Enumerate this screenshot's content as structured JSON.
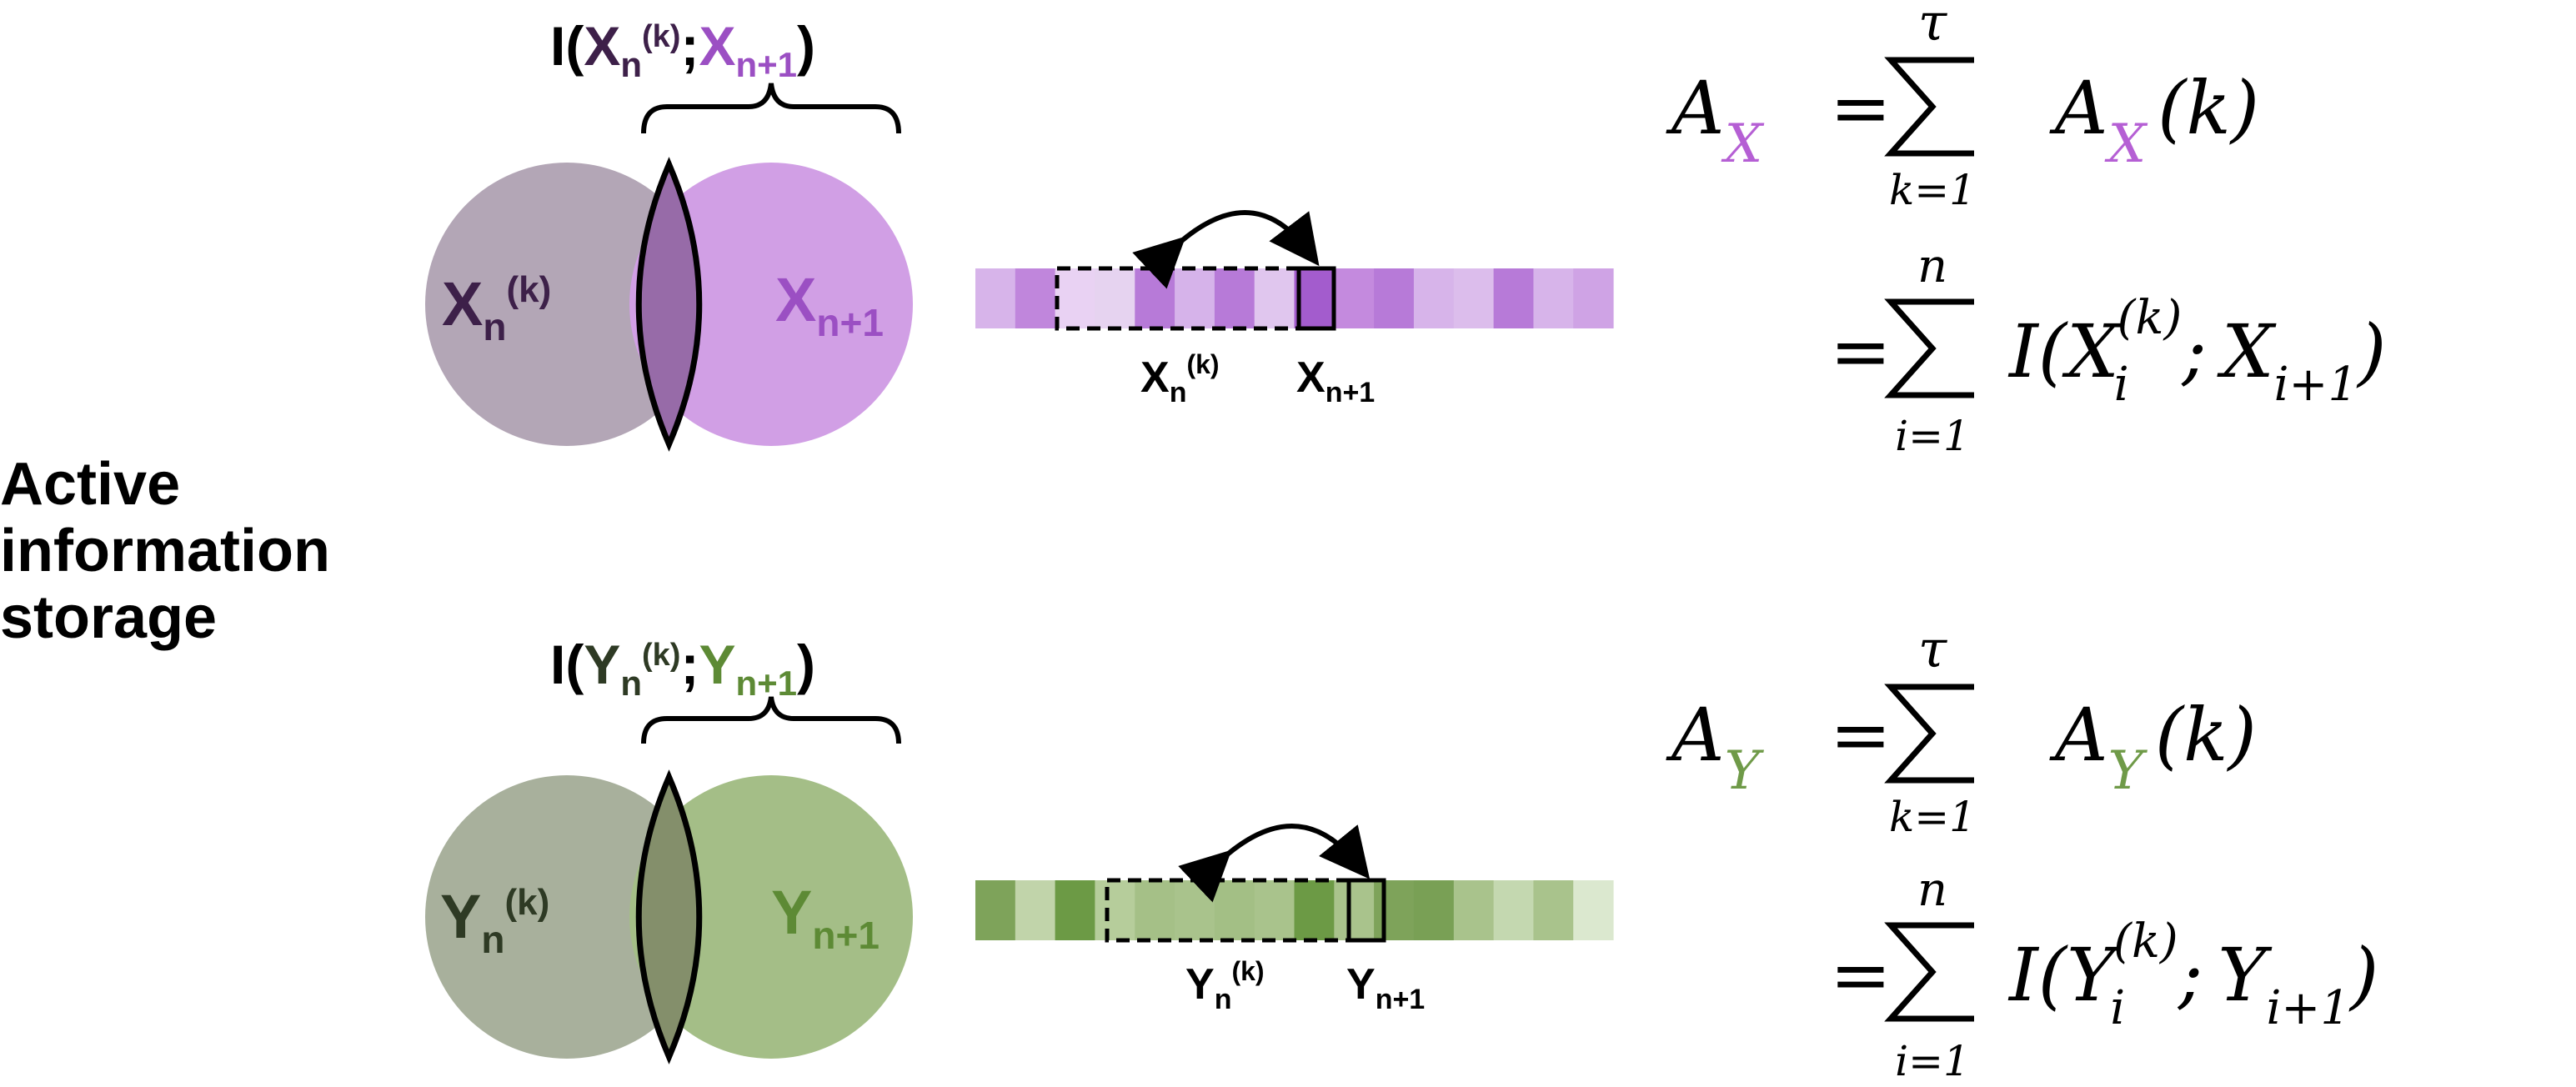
{
  "side_label": {
    "line1": "Active",
    "line2": "information",
    "line3": "storage"
  },
  "panels": [
    {
      "id": "X",
      "var": "X",
      "colors": {
        "past_circle": "#b3a6b6",
        "future_circle": "#d19fe5",
        "overlap": "#976ba8",
        "past_text": "#3d2049",
        "future_text": "#9b4fc3",
        "accent": "#b55fd4"
      },
      "mi_label": {
        "prefix": "I(",
        "var": "X",
        "sub": "n",
        "sup": "(k)",
        "sep": ";",
        "var2": "X",
        "sub2": "n+1",
        "suffix": ")"
      },
      "past_label": {
        "var": "X",
        "sub": "n",
        "sup": "(k)"
      },
      "future_label": {
        "var": "X",
        "sub": "n+1"
      },
      "strip_past_label": {
        "var": "X",
        "sub": "n",
        "sup": "(k)"
      },
      "strip_future_label": {
        "var": "X",
        "sub": "n+1"
      },
      "strip_cells": [
        "#d7b4ea",
        "#c086dc",
        "#e9d2f3",
        "#e6d3f0",
        "#b77ad8",
        "#d6b3ea",
        "#b77ad8",
        "#e0c6ee",
        "#a35ccd",
        "#c48ade",
        "#b77ad8",
        "#d7b4ea",
        "#dcbdec",
        "#b77ad8",
        "#d7b4ea",
        "#cfa3e5"
      ],
      "eq1": {
        "lhs": "A",
        "lhs_sub": "X",
        "eq": "=",
        "sum_top": "τ",
        "sum_bottom": "k=1",
        "term": "A",
        "term_sub": "X",
        "arg": "(k)"
      },
      "eq2": {
        "eq": "=",
        "sum_top": "n",
        "sum_bottom": "i=1",
        "open": "I(",
        "a": "X",
        "a_sub": "i",
        "a_sup": "(k)",
        "sep": ";",
        "b": "X",
        "b_sub": "i+1",
        "close": ")"
      }
    },
    {
      "id": "Y",
      "var": "Y",
      "colors": {
        "past_circle": "#a8b09c",
        "future_circle": "#a4be87",
        "overlap": "#848f6b",
        "past_text": "#2e3a24",
        "future_text": "#5d8a35",
        "accent": "#6f9a48"
      },
      "mi_label": {
        "prefix": "I(",
        "var": "Y",
        "sub": "n",
        "sup": "(k)",
        "sep": ";",
        "var2": "Y",
        "sub2": "n+1",
        "suffix": ")"
      },
      "past_label": {
        "var": "Y",
        "sub": "n",
        "sup": "(k)"
      },
      "future_label": {
        "var": "Y",
        "sub": "n+1"
      },
      "strip_past_label": {
        "var": "Y",
        "sub": "n",
        "sup": "(k)"
      },
      "strip_future_label": {
        "var": "Y",
        "sub": "n+1"
      },
      "strip_cells": [
        "#7ea35a",
        "#c1d4aa",
        "#6c9a45",
        "#b6cd9b",
        "#a5c087",
        "#a9c38c",
        "#a3bf85",
        "#a9c38c",
        "#6c9a45",
        "#a9c38c",
        "#7ea35a",
        "#79a055",
        "#a9c38c",
        "#c4d8b0",
        "#a9c38c",
        "#dbe8cf"
      ],
      "eq1": {
        "lhs": "A",
        "lhs_sub": "Y",
        "eq": "=",
        "sum_top": "τ",
        "sum_bottom": "k=1",
        "term": "A",
        "term_sub": "Y",
        "arg": "(k)"
      },
      "eq2": {
        "eq": "=",
        "sum_top": "n",
        "sum_bottom": "i=1",
        "open": "I(",
        "a": "Y",
        "a_sub": "i",
        "a_sup": "(k)",
        "sep": ";",
        "b": "Y",
        "b_sub": "i+1",
        "close": ")"
      }
    }
  ]
}
